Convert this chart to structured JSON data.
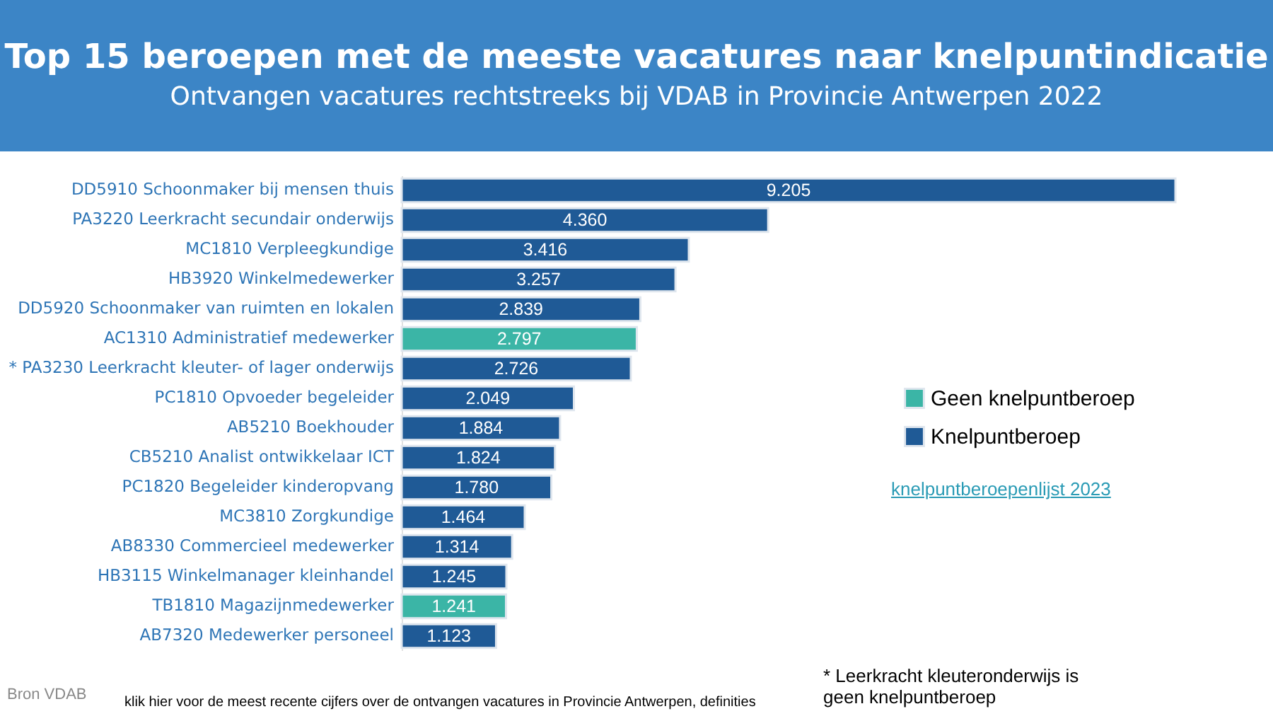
{
  "chart_data": {
    "type": "bar",
    "orientation": "horizontal",
    "title": "Top 15 beroepen met de meeste vacatures naar knelpuntindicatie",
    "subtitle": "Ontvangen vacatures rechtstreeks bij VDAB in Provincie Antwerpen 2022",
    "categories": [
      "DD5910 Schoonmaker bij mensen thuis",
      "PA3220 Leerkracht secundair onderwijs",
      "MC1810 Verpleegkundige",
      "HB3920 Winkelmedewerker",
      "DD5920 Schoonmaker van ruimten en lokalen",
      "AC1310 Administratief medewerker",
      "* PA3230 Leerkracht kleuter- of lager onderwijs",
      "PC1810 Opvoeder begeleider",
      "AB5210 Boekhouder",
      "CB5210 Analist ontwikkelaar ICT",
      "PC1820 Begeleider kinderopvang",
      "MC3810 Zorgkundige",
      "AB8330 Commercieel medewerker",
      "HB3115 Winkelmanager kleinhandel",
      "TB1810 Magazijnmedewerker",
      "AB7320 Medewerker personeel"
    ],
    "series": [
      {
        "name": "Geen knelpuntberoep",
        "color": "#3bb5a6",
        "values": [
          null,
          null,
          null,
          null,
          null,
          2797,
          null,
          null,
          null,
          null,
          null,
          null,
          null,
          null,
          1241,
          null
        ],
        "value_labels": [
          null,
          null,
          null,
          null,
          null,
          "2.797",
          null,
          null,
          null,
          null,
          null,
          null,
          null,
          null,
          "1.241",
          null
        ]
      },
      {
        "name": "Knelpuntberoep",
        "color": "#1f5a96",
        "values": [
          9205,
          4360,
          3416,
          3257,
          2839,
          null,
          2726,
          2049,
          1884,
          1824,
          1780,
          1464,
          1314,
          1245,
          null,
          1123
        ],
        "value_labels": [
          "9.205",
          "4.360",
          "3.416",
          "3.257",
          "2.839",
          null,
          "2.726",
          "2.049",
          "1.884",
          "1.824",
          "1.780",
          "1.464",
          "1.314",
          "1.245",
          null,
          "1.123"
        ]
      }
    ],
    "legend": "right",
    "annotations": [
      "knelpuntberoepenlijst 2023",
      "* Leerkracht kleuteronderwijs is geen knelpuntberoep",
      "Bron VDAB",
      "klik hier voor de meest recente cijfers over de ontvangen vacatures in Provincie Antwerpen, definities"
    ]
  }
}
